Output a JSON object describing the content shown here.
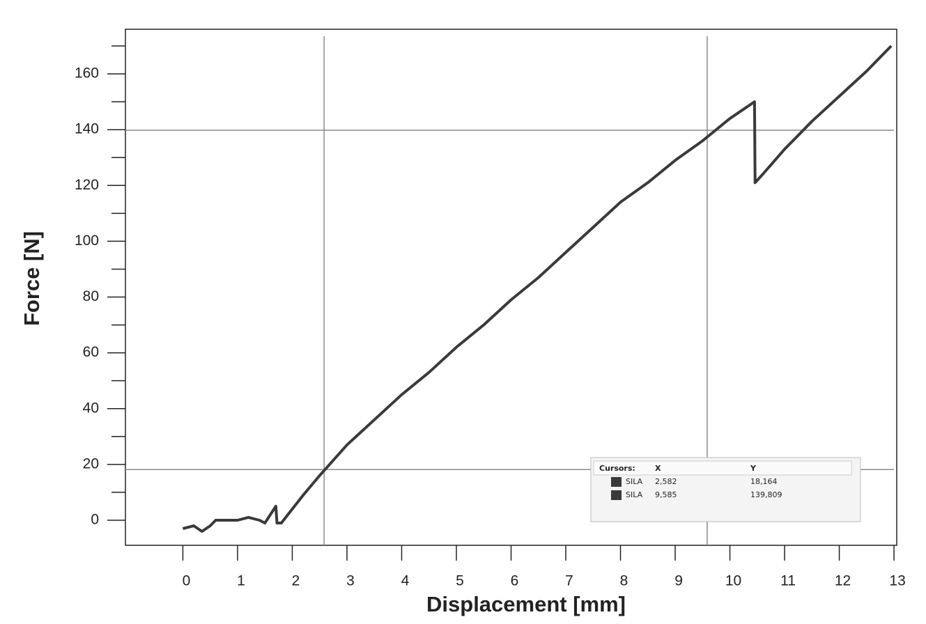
{
  "chart_data": {
    "type": "line",
    "x_label": "Displacement [mm]",
    "y_label": "Force [N]",
    "xlim": [
      -1.05,
      13.05
    ],
    "ylim": [
      -9,
      176
    ],
    "xticks": [
      0,
      1,
      2,
      3,
      4,
      5,
      6,
      7,
      8,
      9,
      10,
      11,
      12,
      13
    ],
    "yticks": [
      0,
      20,
      40,
      60,
      80,
      100,
      120,
      140,
      160
    ],
    "y_minor_ticks": [
      10,
      30,
      50,
      70,
      90,
      110,
      130,
      150,
      170
    ],
    "series": [
      {
        "name": "SILA",
        "color": "#3a3a3a",
        "x": [
          0,
          0.2,
          0.35,
          0.5,
          0.6,
          0.8,
          1.0,
          1.2,
          1.4,
          1.5,
          1.6,
          1.7,
          1.72,
          1.8,
          2.0,
          2.2,
          2.5,
          3.0,
          3.5,
          4.0,
          4.5,
          5.0,
          5.5,
          6.0,
          6.5,
          7.0,
          7.5,
          8.0,
          8.5,
          9.0,
          9.5,
          10.0,
          10.3,
          10.45,
          10.46,
          10.6,
          11.0,
          11.5,
          12.0,
          12.5,
          12.95
        ],
        "values": [
          -3,
          -2,
          -4,
          -2,
          0,
          0,
          0,
          1,
          0,
          -1,
          2,
          5,
          -1,
          -1,
          4,
          9,
          16,
          27,
          36,
          45,
          53,
          62,
          70,
          79,
          87,
          96,
          105,
          114,
          121,
          129,
          136,
          144,
          148,
          150,
          121,
          124,
          133,
          143,
          152,
          161,
          170
        ]
      }
    ],
    "cursors": {
      "header": [
        "Cursors:",
        "X",
        "Y"
      ],
      "rows": [
        {
          "name": "SILA",
          "x": {
            "value": 2.582,
            "label": "2,582"
          },
          "y": {
            "value": 18.164,
            "label": "18,164"
          }
        },
        {
          "name": "SILA",
          "x": {
            "value": 9.585,
            "label": "9,585"
          },
          "y": {
            "value": 139.809,
            "label": "139,809"
          }
        }
      ]
    }
  }
}
